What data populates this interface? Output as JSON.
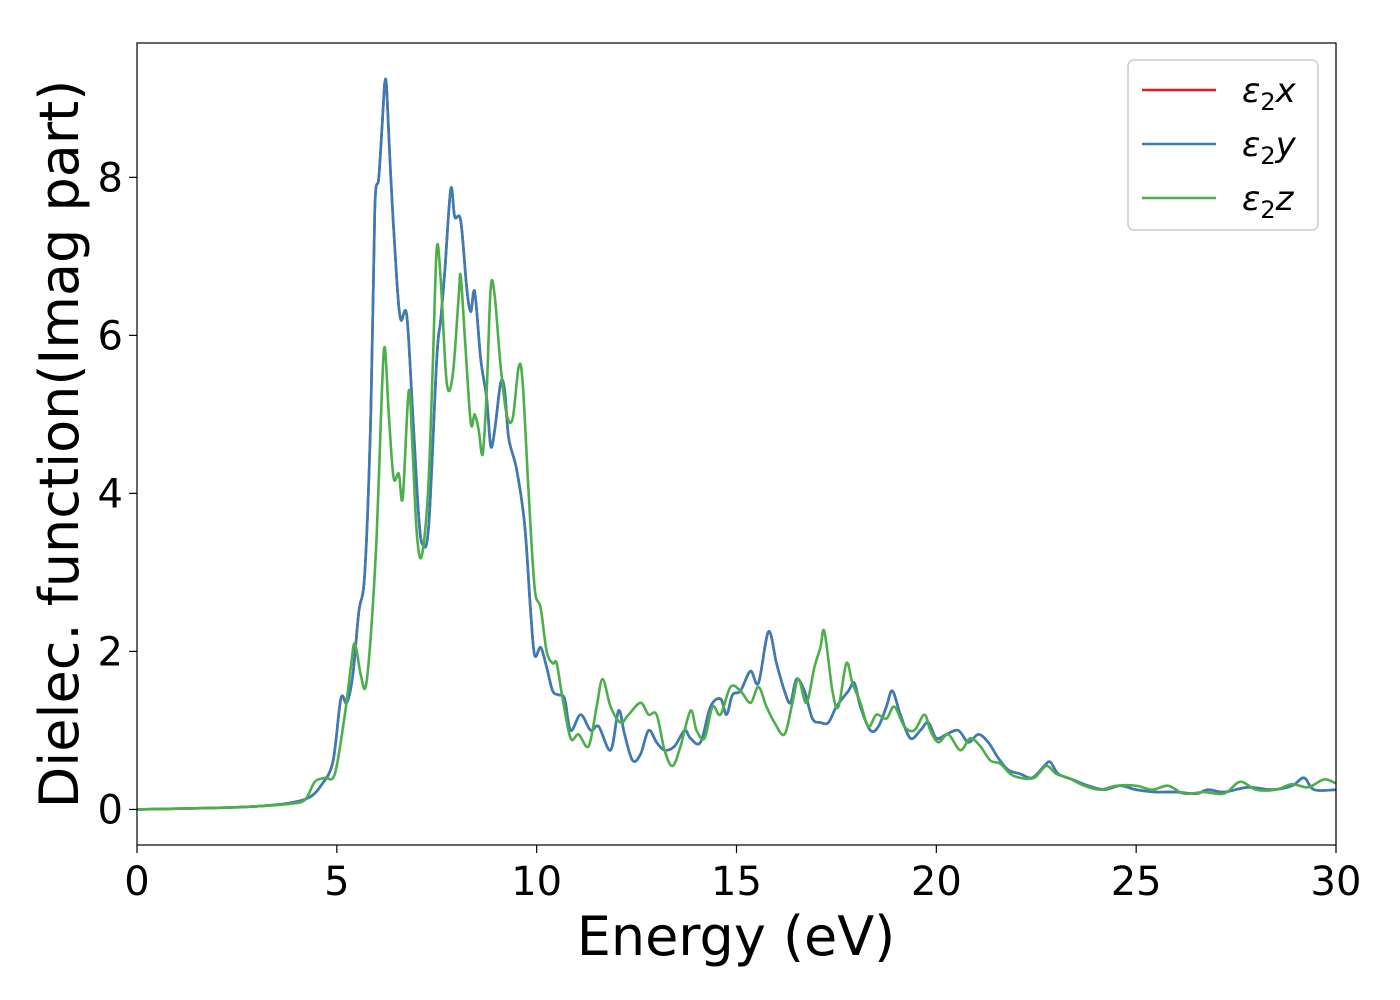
{
  "chart_data": {
    "type": "line",
    "title": "",
    "xlabel": "Energy (eV)",
    "ylabel": "Dielec. function(Imag part)",
    "xlim": [
      0,
      30
    ],
    "ylim": [
      -0.45,
      9.7
    ],
    "xticks": [
      0,
      5,
      10,
      15,
      20,
      25,
      30
    ],
    "yticks": [
      0,
      2,
      4,
      6,
      8
    ],
    "grid": false,
    "legend_position": "top-right",
    "series": [
      {
        "name": "ε₂x",
        "legend_main": "ε",
        "legend_sub": "2",
        "legend_var": "x",
        "color": "#e41a1c",
        "same_as": "ε₂y"
      },
      {
        "name": "ε₂y",
        "legend_main": "ε",
        "legend_sub": "2",
        "legend_var": "y",
        "color": "#377eb8",
        "points": [
          [
            0,
            0.0
          ],
          [
            1,
            0.01
          ],
          [
            2,
            0.02
          ],
          [
            3,
            0.04
          ],
          [
            3.8,
            0.08
          ],
          [
            4.3,
            0.15
          ],
          [
            4.6,
            0.3
          ],
          [
            4.9,
            0.6
          ],
          [
            5.1,
            1.4
          ],
          [
            5.25,
            1.35
          ],
          [
            5.4,
            1.7
          ],
          [
            5.55,
            2.5
          ],
          [
            5.7,
            3.0
          ],
          [
            5.85,
            5.0
          ],
          [
            5.95,
            7.6
          ],
          [
            6.05,
            8.0
          ],
          [
            6.15,
            8.8
          ],
          [
            6.2,
            9.2
          ],
          [
            6.25,
            9.1
          ],
          [
            6.35,
            8.0
          ],
          [
            6.5,
            6.7
          ],
          [
            6.6,
            6.2
          ],
          [
            6.75,
            6.25
          ],
          [
            6.9,
            5.0
          ],
          [
            7.05,
            3.7
          ],
          [
            7.15,
            3.35
          ],
          [
            7.3,
            3.6
          ],
          [
            7.5,
            5.7
          ],
          [
            7.6,
            6.2
          ],
          [
            7.7,
            6.8
          ],
          [
            7.85,
            7.85
          ],
          [
            7.95,
            7.5
          ],
          [
            8.1,
            7.45
          ],
          [
            8.25,
            6.6
          ],
          [
            8.35,
            6.3
          ],
          [
            8.45,
            6.55
          ],
          [
            8.6,
            5.7
          ],
          [
            8.75,
            5.2
          ],
          [
            8.85,
            4.6
          ],
          [
            8.95,
            4.8
          ],
          [
            9.1,
            5.4
          ],
          [
            9.2,
            5.3
          ],
          [
            9.3,
            4.7
          ],
          [
            9.5,
            4.3
          ],
          [
            9.7,
            3.6
          ],
          [
            9.85,
            2.5
          ],
          [
            9.95,
            1.95
          ],
          [
            10.1,
            2.05
          ],
          [
            10.25,
            1.8
          ],
          [
            10.4,
            1.5
          ],
          [
            10.55,
            1.45
          ],
          [
            10.7,
            1.4
          ],
          [
            10.85,
            1.0
          ],
          [
            11.1,
            1.2
          ],
          [
            11.35,
            1.0
          ],
          [
            11.55,
            1.05
          ],
          [
            11.85,
            0.75
          ],
          [
            12.05,
            1.25
          ],
          [
            12.2,
            0.95
          ],
          [
            12.4,
            0.62
          ],
          [
            12.6,
            0.7
          ],
          [
            12.8,
            1.0
          ],
          [
            13.0,
            0.85
          ],
          [
            13.2,
            0.75
          ],
          [
            13.45,
            0.8
          ],
          [
            13.7,
            1.0
          ],
          [
            13.85,
            0.9
          ],
          [
            14.1,
            0.85
          ],
          [
            14.35,
            1.3
          ],
          [
            14.6,
            1.4
          ],
          [
            14.75,
            1.2
          ],
          [
            14.9,
            1.45
          ],
          [
            15.1,
            1.5
          ],
          [
            15.35,
            1.75
          ],
          [
            15.55,
            1.6
          ],
          [
            15.8,
            2.25
          ],
          [
            16.0,
            1.85
          ],
          [
            16.2,
            1.5
          ],
          [
            16.35,
            1.35
          ],
          [
            16.5,
            1.65
          ],
          [
            16.7,
            1.5
          ],
          [
            16.9,
            1.15
          ],
          [
            17.1,
            1.1
          ],
          [
            17.3,
            1.1
          ],
          [
            17.5,
            1.3
          ],
          [
            17.8,
            1.5
          ],
          [
            17.95,
            1.6
          ],
          [
            18.1,
            1.3
          ],
          [
            18.35,
            1.0
          ],
          [
            18.55,
            1.05
          ],
          [
            18.75,
            1.3
          ],
          [
            18.9,
            1.5
          ],
          [
            19.1,
            1.2
          ],
          [
            19.35,
            0.9
          ],
          [
            19.6,
            1.0
          ],
          [
            19.8,
            1.1
          ],
          [
            20.0,
            0.9
          ],
          [
            20.25,
            0.95
          ],
          [
            20.55,
            1.0
          ],
          [
            20.8,
            0.85
          ],
          [
            21.05,
            0.95
          ],
          [
            21.3,
            0.85
          ],
          [
            21.55,
            0.65
          ],
          [
            21.8,
            0.5
          ],
          [
            22.1,
            0.45
          ],
          [
            22.4,
            0.4
          ],
          [
            22.7,
            0.55
          ],
          [
            22.85,
            0.6
          ],
          [
            23.05,
            0.45
          ],
          [
            23.4,
            0.38
          ],
          [
            23.8,
            0.3
          ],
          [
            24.2,
            0.25
          ],
          [
            24.6,
            0.3
          ],
          [
            25.0,
            0.25
          ],
          [
            25.5,
            0.22
          ],
          [
            26.0,
            0.22
          ],
          [
            26.5,
            0.2
          ],
          [
            26.8,
            0.25
          ],
          [
            27.2,
            0.22
          ],
          [
            27.8,
            0.28
          ],
          [
            28.4,
            0.25
          ],
          [
            28.9,
            0.3
          ],
          [
            29.2,
            0.4
          ],
          [
            29.45,
            0.25
          ],
          [
            30.0,
            0.25
          ]
        ]
      },
      {
        "name": "ε₂z",
        "legend_main": "ε",
        "legend_sub": "2",
        "legend_var": "z",
        "color": "#4daf4a",
        "points": [
          [
            0,
            0.0
          ],
          [
            1,
            0.01
          ],
          [
            2,
            0.02
          ],
          [
            3,
            0.04
          ],
          [
            3.8,
            0.07
          ],
          [
            4.2,
            0.12
          ],
          [
            4.45,
            0.35
          ],
          [
            4.7,
            0.4
          ],
          [
            4.95,
            0.45
          ],
          [
            5.2,
            1.2
          ],
          [
            5.35,
            1.8
          ],
          [
            5.45,
            2.1
          ],
          [
            5.6,
            1.7
          ],
          [
            5.72,
            1.55
          ],
          [
            5.85,
            2.2
          ],
          [
            6.0,
            3.5
          ],
          [
            6.12,
            5.2
          ],
          [
            6.2,
            5.85
          ],
          [
            6.3,
            5.0
          ],
          [
            6.42,
            4.2
          ],
          [
            6.55,
            4.25
          ],
          [
            6.65,
            3.95
          ],
          [
            6.8,
            5.3
          ],
          [
            6.9,
            4.5
          ],
          [
            7.0,
            3.5
          ],
          [
            7.12,
            3.2
          ],
          [
            7.28,
            4.0
          ],
          [
            7.4,
            5.6
          ],
          [
            7.5,
            7.1
          ],
          [
            7.6,
            6.7
          ],
          [
            7.75,
            5.4
          ],
          [
            7.9,
            5.5
          ],
          [
            8.05,
            6.5
          ],
          [
            8.1,
            6.75
          ],
          [
            8.2,
            6.0
          ],
          [
            8.35,
            4.9
          ],
          [
            8.45,
            5.0
          ],
          [
            8.55,
            4.8
          ],
          [
            8.65,
            4.5
          ],
          [
            8.75,
            5.3
          ],
          [
            8.85,
            6.6
          ],
          [
            8.95,
            6.5
          ],
          [
            9.1,
            5.6
          ],
          [
            9.25,
            5.0
          ],
          [
            9.4,
            4.95
          ],
          [
            9.55,
            5.6
          ],
          [
            9.65,
            5.4
          ],
          [
            9.8,
            4.0
          ],
          [
            9.95,
            2.8
          ],
          [
            10.1,
            2.55
          ],
          [
            10.25,
            2.0
          ],
          [
            10.4,
            1.85
          ],
          [
            10.5,
            1.85
          ],
          [
            10.65,
            1.4
          ],
          [
            10.85,
            0.9
          ],
          [
            11.05,
            0.95
          ],
          [
            11.3,
            0.8
          ],
          [
            11.5,
            1.3
          ],
          [
            11.65,
            1.65
          ],
          [
            11.85,
            1.3
          ],
          [
            12.1,
            1.1
          ],
          [
            12.3,
            1.2
          ],
          [
            12.6,
            1.35
          ],
          [
            12.8,
            1.2
          ],
          [
            13.0,
            1.2
          ],
          [
            13.2,
            0.75
          ],
          [
            13.4,
            0.55
          ],
          [
            13.6,
            0.8
          ],
          [
            13.85,
            1.25
          ],
          [
            14.0,
            1.0
          ],
          [
            14.2,
            0.9
          ],
          [
            14.4,
            1.3
          ],
          [
            14.6,
            1.2
          ],
          [
            14.85,
            1.55
          ],
          [
            15.1,
            1.5
          ],
          [
            15.35,
            1.35
          ],
          [
            15.55,
            1.55
          ],
          [
            15.75,
            1.3
          ],
          [
            15.95,
            1.1
          ],
          [
            16.2,
            0.95
          ],
          [
            16.4,
            1.35
          ],
          [
            16.55,
            1.65
          ],
          [
            16.75,
            1.35
          ],
          [
            16.95,
            1.8
          ],
          [
            17.1,
            2.05
          ],
          [
            17.2,
            2.25
          ],
          [
            17.4,
            1.5
          ],
          [
            17.55,
            1.3
          ],
          [
            17.75,
            1.85
          ],
          [
            17.9,
            1.6
          ],
          [
            18.1,
            1.35
          ],
          [
            18.3,
            1.05
          ],
          [
            18.5,
            1.2
          ],
          [
            18.75,
            1.15
          ],
          [
            18.95,
            1.3
          ],
          [
            19.2,
            1.05
          ],
          [
            19.45,
            1.0
          ],
          [
            19.7,
            1.2
          ],
          [
            19.85,
            1.0
          ],
          [
            20.05,
            0.85
          ],
          [
            20.3,
            0.95
          ],
          [
            20.6,
            0.75
          ],
          [
            20.85,
            0.9
          ],
          [
            21.1,
            0.8
          ],
          [
            21.35,
            0.62
          ],
          [
            21.6,
            0.58
          ],
          [
            21.85,
            0.45
          ],
          [
            22.1,
            0.4
          ],
          [
            22.45,
            0.4
          ],
          [
            22.75,
            0.55
          ],
          [
            23.0,
            0.45
          ],
          [
            23.3,
            0.4
          ],
          [
            23.7,
            0.3
          ],
          [
            24.1,
            0.25
          ],
          [
            24.5,
            0.3
          ],
          [
            25.0,
            0.3
          ],
          [
            25.4,
            0.25
          ],
          [
            25.8,
            0.3
          ],
          [
            26.2,
            0.2
          ],
          [
            26.7,
            0.22
          ],
          [
            27.2,
            0.2
          ],
          [
            27.6,
            0.35
          ],
          [
            28.0,
            0.25
          ],
          [
            28.5,
            0.25
          ],
          [
            28.9,
            0.32
          ],
          [
            29.3,
            0.28
          ],
          [
            29.7,
            0.38
          ],
          [
            30.0,
            0.33
          ]
        ]
      }
    ]
  }
}
